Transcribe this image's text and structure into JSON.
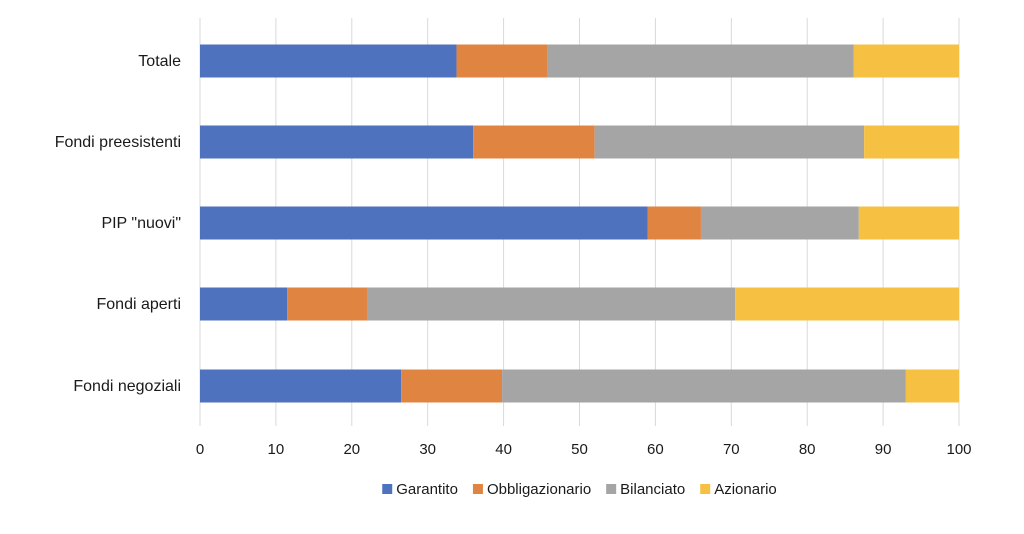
{
  "chart_data": {
    "type": "bar",
    "orientation": "horizontal",
    "stacked": true,
    "categories": [
      "Totale",
      "Fondi preesistenti",
      "PIP \"nuovi\"",
      "Fondi aperti",
      "Fondi negoziali"
    ],
    "series": [
      {
        "name": "Garantito",
        "color": "#4f72be",
        "values": [
          33.8,
          36.0,
          59.0,
          11.5,
          26.5
        ]
      },
      {
        "name": "Obbligazionario",
        "color": "#e08442",
        "values": [
          12.0,
          16.0,
          7.0,
          10.5,
          13.3
        ]
      },
      {
        "name": "Bilanciato",
        "color": "#a5a5a5",
        "values": [
          40.3,
          35.5,
          20.8,
          48.5,
          53.2
        ]
      },
      {
        "name": "Azionario",
        "color": "#f6c142",
        "values": [
          13.9,
          12.5,
          13.2,
          29.5,
          7.0
        ]
      }
    ],
    "xlim": [
      0,
      100
    ],
    "xticks": [
      0,
      10,
      20,
      30,
      40,
      50,
      60,
      70,
      80,
      90,
      100
    ],
    "grid": true,
    "legend_position": "bottom"
  }
}
